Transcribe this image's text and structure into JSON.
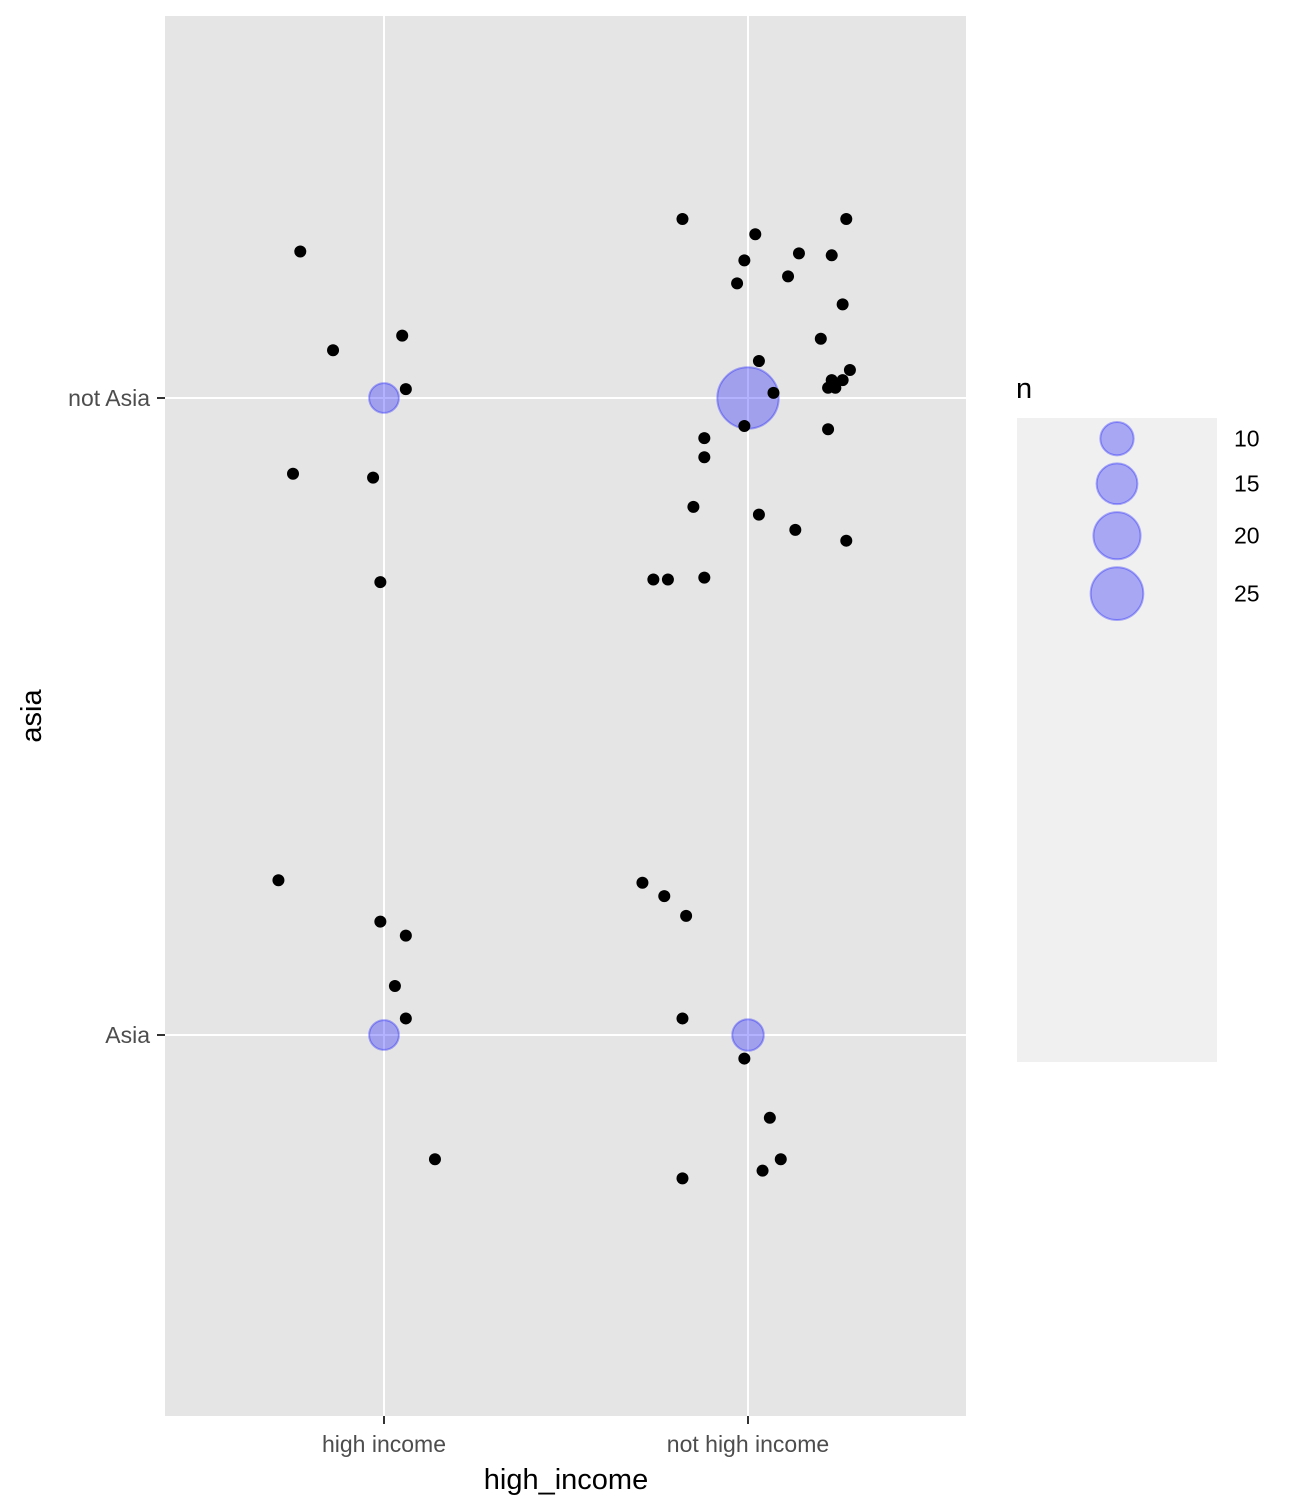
{
  "chart_data": {
    "type": "scatter",
    "xlabel": "high_income",
    "ylabel": "asia",
    "x_categories": [
      "high income",
      "not high income"
    ],
    "y_categories": [
      "Asia",
      "not Asia"
    ],
    "grid": true,
    "legend": {
      "title": "n",
      "placement": "right",
      "entries": [
        {
          "label": "10",
          "value": 10
        },
        {
          "label": "15",
          "value": 15
        },
        {
          "label": "20",
          "value": 20
        },
        {
          "label": "25",
          "value": 25
        }
      ]
    },
    "counts": [
      {
        "x": "high income",
        "y": "not Asia",
        "n": 8
      },
      {
        "x": "not high income",
        "y": "not Asia",
        "n": 34
      },
      {
        "x": "high income",
        "y": "Asia",
        "n": 8
      },
      {
        "x": "not high income",
        "y": "Asia",
        "n": 9
      }
    ],
    "jitter_points": [
      {
        "x": 0.77,
        "y": 2.23
      },
      {
        "x": 0.86,
        "y": 2.075
      },
      {
        "x": 1.05,
        "y": 2.098
      },
      {
        "x": 1.06,
        "y": 2.014
      },
      {
        "x": 0.75,
        "y": 1.881
      },
      {
        "x": 0.97,
        "y": 1.875
      },
      {
        "x": 0.99,
        "y": 1.711
      },
      {
        "x": 1.82,
        "y": 2.281
      },
      {
        "x": 2.02,
        "y": 2.257
      },
      {
        "x": 1.99,
        "y": 2.216
      },
      {
        "x": 2.14,
        "y": 2.227
      },
      {
        "x": 2.23,
        "y": 2.224
      },
      {
        "x": 2.27,
        "y": 2.281
      },
      {
        "x": 2.11,
        "y": 2.191
      },
      {
        "x": 1.97,
        "y": 2.18
      },
      {
        "x": 2.26,
        "y": 2.147
      },
      {
        "x": 2.2,
        "y": 2.093
      },
      {
        "x": 2.03,
        "y": 2.058
      },
      {
        "x": 2.28,
        "y": 2.044
      },
      {
        "x": 2.23,
        "y": 2.028
      },
      {
        "x": 2.26,
        "y": 2.028
      },
      {
        "x": 2.22,
        "y": 2.016
      },
      {
        "x": 2.24,
        "y": 2.016
      },
      {
        "x": 2.07,
        "y": 2.008
      },
      {
        "x": 1.99,
        "y": 1.956
      },
      {
        "x": 2.22,
        "y": 1.951
      },
      {
        "x": 1.88,
        "y": 1.937
      },
      {
        "x": 1.88,
        "y": 1.907
      },
      {
        "x": 1.85,
        "y": 1.829
      },
      {
        "x": 2.03,
        "y": 1.817
      },
      {
        "x": 2.13,
        "y": 1.793
      },
      {
        "x": 2.27,
        "y": 1.776
      },
      {
        "x": 1.88,
        "y": 1.718
      },
      {
        "x": 1.74,
        "y": 1.715
      },
      {
        "x": 1.78,
        "y": 1.715
      },
      {
        "x": 0.71,
        "y": 1.243
      },
      {
        "x": 0.99,
        "y": 1.178
      },
      {
        "x": 1.06,
        "y": 1.156
      },
      {
        "x": 1.03,
        "y": 1.077
      },
      {
        "x": 1.06,
        "y": 1.026
      },
      {
        "x": 1.14,
        "y": 0.805
      },
      {
        "x": 1.71,
        "y": 1.239
      },
      {
        "x": 1.77,
        "y": 1.218
      },
      {
        "x": 1.83,
        "y": 1.187
      },
      {
        "x": 1.82,
        "y": 1.026
      },
      {
        "x": 1.99,
        "y": 0.963
      },
      {
        "x": 2.06,
        "y": 0.87
      },
      {
        "x": 2.09,
        "y": 0.805
      },
      {
        "x": 1.82,
        "y": 0.775
      },
      {
        "x": 2.04,
        "y": 0.787
      }
    ],
    "n_range": [
      8,
      34
    ]
  }
}
